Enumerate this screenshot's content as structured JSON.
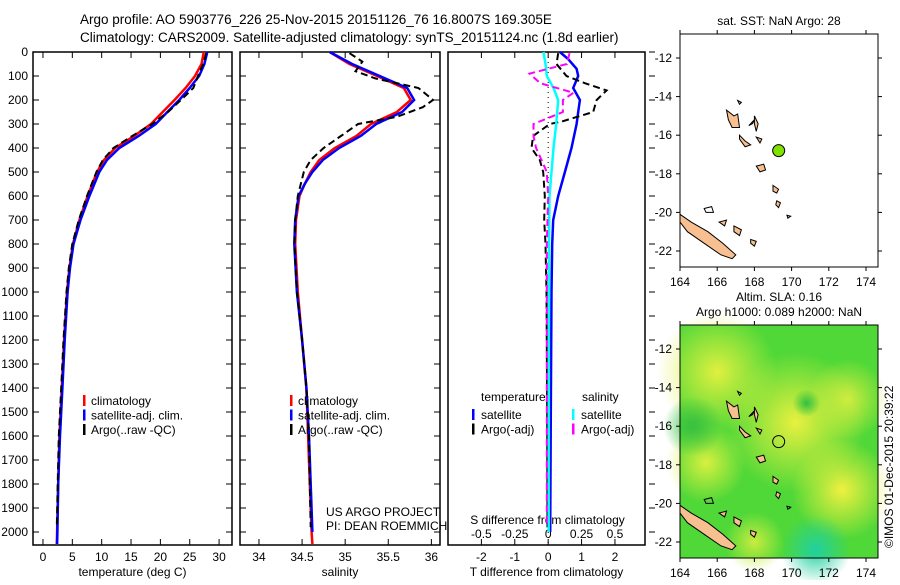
{
  "title": {
    "line1": "Argo profile: AO 5903776_226 25-Nov-2015 20151126_76 16.8007S 169.305E",
    "line2": "Climatology: CARS2009. Satellite-adjusted climatology: synTS_20151124.nc (1.8d earlier)"
  },
  "colors": {
    "climatology": "#ff0000",
    "satellite": "#0000ff",
    "argo": "#000000",
    "sal_satellite": "#00ffff",
    "sal_argo": "#ff00ff",
    "map_marker": "#80e000",
    "land": "#f8c090"
  },
  "chart_data": [
    {
      "type": "line",
      "id": "temperature",
      "xlabel": "temperature (deg C)",
      "ylabel": "",
      "xlim": [
        -1.7,
        32.2
      ],
      "ylim": [
        2050,
        0
      ],
      "xticks": [
        "0",
        "5",
        "10",
        "15",
        "20",
        "25",
        "30"
      ],
      "yticks": [
        "0",
        "100",
        "200",
        "300",
        "400",
        "500",
        "600",
        "700",
        "800",
        "900",
        "1000",
        "1100",
        "1200",
        "1300",
        "1400",
        "1500",
        "1600",
        "1700",
        "1800",
        "1900",
        "2000"
      ],
      "series": [
        {
          "name": "climatology",
          "color": "#ff0000",
          "dash": false,
          "points": [
            [
              0,
              27.4
            ],
            [
              50,
              27.0
            ],
            [
              100,
              25.9
            ],
            [
              150,
              24.3
            ],
            [
              200,
              22.4
            ],
            [
              250,
              20.4
            ],
            [
              300,
              18.4
            ],
            [
              350,
              15.5
            ],
            [
              400,
              12.3
            ],
            [
              450,
              10.4
            ],
            [
              500,
              9.2
            ],
            [
              600,
              7.6
            ],
            [
              700,
              6.2
            ],
            [
              800,
              5.1
            ],
            [
              900,
              4.5
            ],
            [
              1000,
              4.1
            ],
            [
              1200,
              3.6
            ],
            [
              1400,
              3.2
            ],
            [
              1600,
              2.8
            ],
            [
              1800,
              2.6
            ],
            [
              2000,
              2.4
            ],
            [
              2050,
              2.35
            ]
          ]
        },
        {
          "name": "satellite-adj. clim.",
          "color": "#0000ff",
          "dash": false,
          "points": [
            [
              0,
              28.0
            ],
            [
              50,
              27.5
            ],
            [
              100,
              26.6
            ],
            [
              150,
              25.0
            ],
            [
              200,
              23.2
            ],
            [
              250,
              21.2
            ],
            [
              300,
              19.2
            ],
            [
              350,
              16.3
            ],
            [
              400,
              13.0
            ],
            [
              450,
              10.9
            ],
            [
              500,
              9.6
            ],
            [
              600,
              7.9
            ],
            [
              700,
              6.4
            ],
            [
              800,
              5.2
            ],
            [
              900,
              4.6
            ],
            [
              1000,
              4.2
            ],
            [
              1200,
              3.7
            ],
            [
              1400,
              3.3
            ],
            [
              1600,
              2.9
            ],
            [
              1800,
              2.6
            ],
            [
              2000,
              2.45
            ],
            [
              2050,
              2.4
            ]
          ]
        },
        {
          "name": "Argo(..raw -QC)",
          "color": "#000000",
          "dash": true,
          "points": [
            [
              5,
              27.8
            ],
            [
              50,
              27.3
            ],
            [
              100,
              26.4
            ],
            [
              150,
              25.6
            ],
            [
              200,
              23.5
            ],
            [
              250,
              21.3
            ],
            [
              300,
              18.6
            ],
            [
              350,
              15.2
            ],
            [
              400,
              12.0
            ],
            [
              450,
              10.2
            ],
            [
              500,
              9.1
            ],
            [
              600,
              7.5
            ],
            [
              700,
              6.1
            ],
            [
              800,
              5.0
            ],
            [
              900,
              4.4
            ],
            [
              1000,
              4.0
            ],
            [
              1200,
              3.5
            ],
            [
              1400,
              3.1
            ],
            [
              1600,
              2.7
            ],
            [
              1800,
              2.5
            ],
            [
              1980,
              2.35
            ]
          ]
        }
      ],
      "legend": [
        "climatology",
        "satellite-adj. clim.",
        "Argo(..raw -QC)"
      ]
    },
    {
      "type": "line",
      "id": "salinity",
      "xlabel": "salinity",
      "xlim": [
        33.78,
        36.1
      ],
      "ylim": [
        2050,
        0
      ],
      "xticks": [
        "34",
        "34.5",
        "35",
        "35.5",
        "36"
      ],
      "series": [
        {
          "name": "climatology",
          "color": "#ff0000",
          "dash": false,
          "points": [
            [
              0,
              34.82
            ],
            [
              50,
              35.05
            ],
            [
              100,
              35.37
            ],
            [
              150,
              35.68
            ],
            [
              200,
              35.76
            ],
            [
              250,
              35.6
            ],
            [
              300,
              35.3
            ],
            [
              350,
              35.13
            ],
            [
              400,
              34.88
            ],
            [
              450,
              34.7
            ],
            [
              500,
              34.6
            ],
            [
              550,
              34.53
            ],
            [
              600,
              34.47
            ],
            [
              700,
              34.43
            ],
            [
              800,
              34.42
            ],
            [
              1000,
              34.45
            ],
            [
              1200,
              34.5
            ],
            [
              1400,
              34.55
            ],
            [
              1600,
              34.57
            ],
            [
              1800,
              34.59
            ],
            [
              2000,
              34.61
            ],
            [
              2050,
              34.62
            ]
          ]
        },
        {
          "name": "satellite-adj. clim.",
          "color": "#0000ff",
          "dash": false,
          "points": [
            [
              0,
              34.82
            ],
            [
              50,
              35.08
            ],
            [
              100,
              35.4
            ],
            [
              150,
              35.72
            ],
            [
              200,
              35.8
            ],
            [
              250,
              35.66
            ],
            [
              300,
              35.36
            ],
            [
              350,
              35.18
            ],
            [
              400,
              34.93
            ],
            [
              450,
              34.74
            ],
            [
              500,
              34.62
            ],
            [
              550,
              34.53
            ],
            [
              600,
              34.46
            ],
            [
              700,
              34.42
            ],
            [
              800,
              34.41
            ],
            [
              1000,
              34.44
            ],
            [
              1200,
              34.5
            ],
            [
              1400,
              34.55
            ],
            [
              1600,
              34.58
            ],
            [
              1800,
              34.6
            ],
            [
              2000,
              34.62
            ]
          ]
        },
        {
          "name": "Argo(..raw -QC)",
          "color": "#000000",
          "dash": true,
          "points": [
            [
              5,
              35.05
            ],
            [
              40,
              35.2
            ],
            [
              80,
              35.12
            ],
            [
              110,
              35.35
            ],
            [
              150,
              35.85
            ],
            [
              200,
              36.02
            ],
            [
              230,
              35.9
            ],
            [
              270,
              35.6
            ],
            [
              300,
              35.15
            ],
            [
              350,
              34.95
            ],
            [
              400,
              34.75
            ],
            [
              450,
              34.6
            ],
            [
              500,
              34.52
            ],
            [
              600,
              34.45
            ],
            [
              700,
              34.42
            ],
            [
              800,
              34.41
            ],
            [
              1000,
              34.44
            ],
            [
              1200,
              34.5
            ],
            [
              1400,
              34.55
            ],
            [
              1600,
              34.58
            ],
            [
              1800,
              34.59
            ],
            [
              1980,
              34.6
            ]
          ]
        }
      ],
      "legend": [
        "climatology",
        "satellite-adj. clim.",
        "Argo(..raw -QC)"
      ],
      "credits": [
        "US ARGO PROJECT",
        "PI: DEAN ROEMMICH"
      ]
    },
    {
      "type": "line",
      "id": "difference",
      "xlabel": "T difference from climatology",
      "x2label": "S difference from climatology",
      "xlim": [
        -3.0,
        2.9
      ],
      "x2lim": [
        -0.75,
        0.725
      ],
      "ylim": [
        2050,
        0
      ],
      "xticks": [
        "-2",
        "-1",
        "0",
        "1",
        "2"
      ],
      "x2ticks": [
        "-0.5",
        "-0.25",
        "0",
        "0.25",
        "0.5"
      ],
      "series": [
        {
          "name": "temperature satellite",
          "axis": "T",
          "color": "#0000ff",
          "dash": false,
          "points": [
            [
              0,
              0.35
            ],
            [
              30,
              0.6
            ],
            [
              70,
              0.85
            ],
            [
              100,
              0.9
            ],
            [
              150,
              0.75
            ],
            [
              200,
              0.95
            ],
            [
              250,
              0.9
            ],
            [
              300,
              0.85
            ],
            [
              400,
              0.7
            ],
            [
              450,
              0.6
            ],
            [
              500,
              0.5
            ],
            [
              600,
              0.3
            ],
            [
              700,
              0.15
            ],
            [
              800,
              0.12
            ],
            [
              1000,
              0.1
            ],
            [
              1500,
              0.08
            ],
            [
              2000,
              0.06
            ]
          ]
        },
        {
          "name": "temperature Argo(-adj)",
          "axis": "T",
          "color": "#000000",
          "dash": true,
          "points": [
            [
              5,
              0.3
            ],
            [
              50,
              0.25
            ],
            [
              100,
              0.55
            ],
            [
              130,
              1.1
            ],
            [
              160,
              1.75
            ],
            [
              200,
              1.45
            ],
            [
              250,
              1.35
            ],
            [
              290,
              0.4
            ],
            [
              300,
              0.05
            ],
            [
              350,
              -0.45
            ],
            [
              400,
              -0.5
            ],
            [
              450,
              -0.25
            ],
            [
              500,
              -0.15
            ],
            [
              600,
              -0.1
            ],
            [
              700,
              -0.12
            ],
            [
              800,
              -0.08
            ],
            [
              1000,
              -0.05
            ],
            [
              1500,
              -0.03
            ],
            [
              1980,
              -0.02
            ]
          ]
        },
        {
          "name": "salinity satellite",
          "axis": "S",
          "color": "#00ffff",
          "dash": false,
          "points": [
            [
              0,
              -0.035
            ],
            [
              50,
              -0.02
            ],
            [
              100,
              -0.01
            ],
            [
              150,
              0.04
            ],
            [
              200,
              0.075
            ],
            [
              300,
              0.06
            ],
            [
              400,
              0.04
            ],
            [
              500,
              0.025
            ],
            [
              600,
              0.01
            ],
            [
              800,
              0.006
            ],
            [
              1200,
              0.005
            ],
            [
              2000,
              0.004
            ]
          ]
        },
        {
          "name": "salinity Argo(-adj)",
          "axis": "S",
          "color": "#ff00ff",
          "dash": true,
          "points": [
            [
              5,
              0.16
            ],
            [
              50,
              0.14
            ],
            [
              90,
              -0.14
            ],
            [
              130,
              -0.06
            ],
            [
              170,
              0.19
            ],
            [
              200,
              0.11
            ],
            [
              250,
              0.11
            ],
            [
              300,
              -0.11
            ],
            [
              350,
              -0.11
            ],
            [
              400,
              -0.09
            ],
            [
              450,
              -0.05
            ],
            [
              500,
              -0.01
            ],
            [
              600,
              0.0
            ],
            [
              800,
              -0.01
            ],
            [
              1200,
              -0.01
            ],
            [
              1980,
              -0.01
            ]
          ]
        }
      ],
      "legend": {
        "temperature_heading": "temperature",
        "salinity_heading": "salinity",
        "items": [
          {
            "label": "satellite",
            "color": "#0000ff"
          },
          {
            "label": "Argo(-adj)",
            "color": "#000000"
          },
          {
            "label": "satellite",
            "color": "#00ffff"
          },
          {
            "label": "Argo(-adj)",
            "color": "#ff00ff"
          }
        ]
      }
    }
  ],
  "maps": [
    {
      "id": "sst-map",
      "title": "sat. SST: NaN Argo: 28",
      "xticks": [
        "164",
        "166",
        "168",
        "170",
        "172",
        "174"
      ],
      "yticks": [
        "-12",
        "-14",
        "-16",
        "-18",
        "-20",
        "-22"
      ],
      "argo_position": [
        169.305,
        -16.8007
      ]
    },
    {
      "id": "sla-map",
      "title_line1": "Altim. SLA: 0.16",
      "title_line2": "Argo h1000: 0.089 h2000: NaN",
      "xticks": [
        "164",
        "166",
        "168",
        "170",
        "172",
        "174"
      ],
      "yticks": [
        "-12",
        "-14",
        "-16",
        "-18",
        "-20",
        "-22"
      ],
      "argo_position": [
        169.305,
        -16.8007
      ]
    }
  ],
  "watermark": "©IMOS 01-Dec-2015 20:39:22"
}
